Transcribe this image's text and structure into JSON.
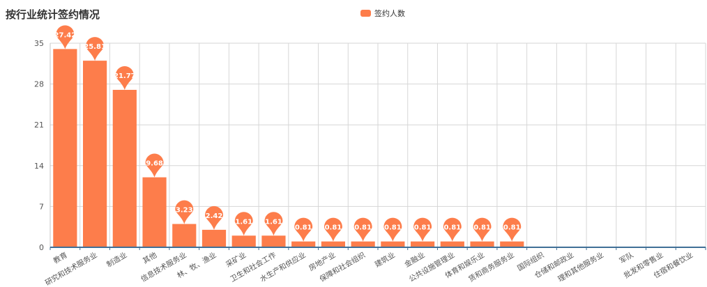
{
  "chart_data": {
    "type": "bar",
    "title": "按行业统计签约情况",
    "series": [
      {
        "name": "签约人数",
        "values": [
          34,
          32,
          27,
          12,
          4,
          3,
          2,
          2,
          1,
          1,
          1,
          1,
          1,
          1,
          1,
          1,
          0,
          0,
          0,
          0,
          0,
          0
        ],
        "labels": [
          "27.42",
          "25.81",
          "21.77",
          "9.68",
          "3.23",
          "2.42",
          "1.61",
          "1.61",
          "0.81",
          "0.81",
          "0.81",
          "0.81",
          "0.81",
          "0.81",
          "0.81",
          "0.81",
          null,
          null,
          null,
          null,
          null,
          null
        ]
      }
    ],
    "categories": [
      "教育",
      "研究和技术服务业",
      "制造业",
      "其他",
      "信息技术服务业",
      "林、牧、渔业",
      "采矿业",
      "卫生和社会工作",
      "水生产和供应业",
      "房地产业",
      "保障和社会组织",
      "建筑业",
      "金融业",
      "公共设施管理业",
      "体育和娱乐业",
      "赁和商务服务业",
      "国际组织",
      "仓储和邮政业",
      "理和其他服务业",
      "军队",
      "批发和零售业",
      "住宿和餐饮业"
    ],
    "yticks": [
      0,
      7,
      14,
      21,
      28,
      35
    ],
    "ylim": [
      0,
      35
    ],
    "grid": true,
    "legend_position": "top-center",
    "color": "#fd7d4b"
  }
}
